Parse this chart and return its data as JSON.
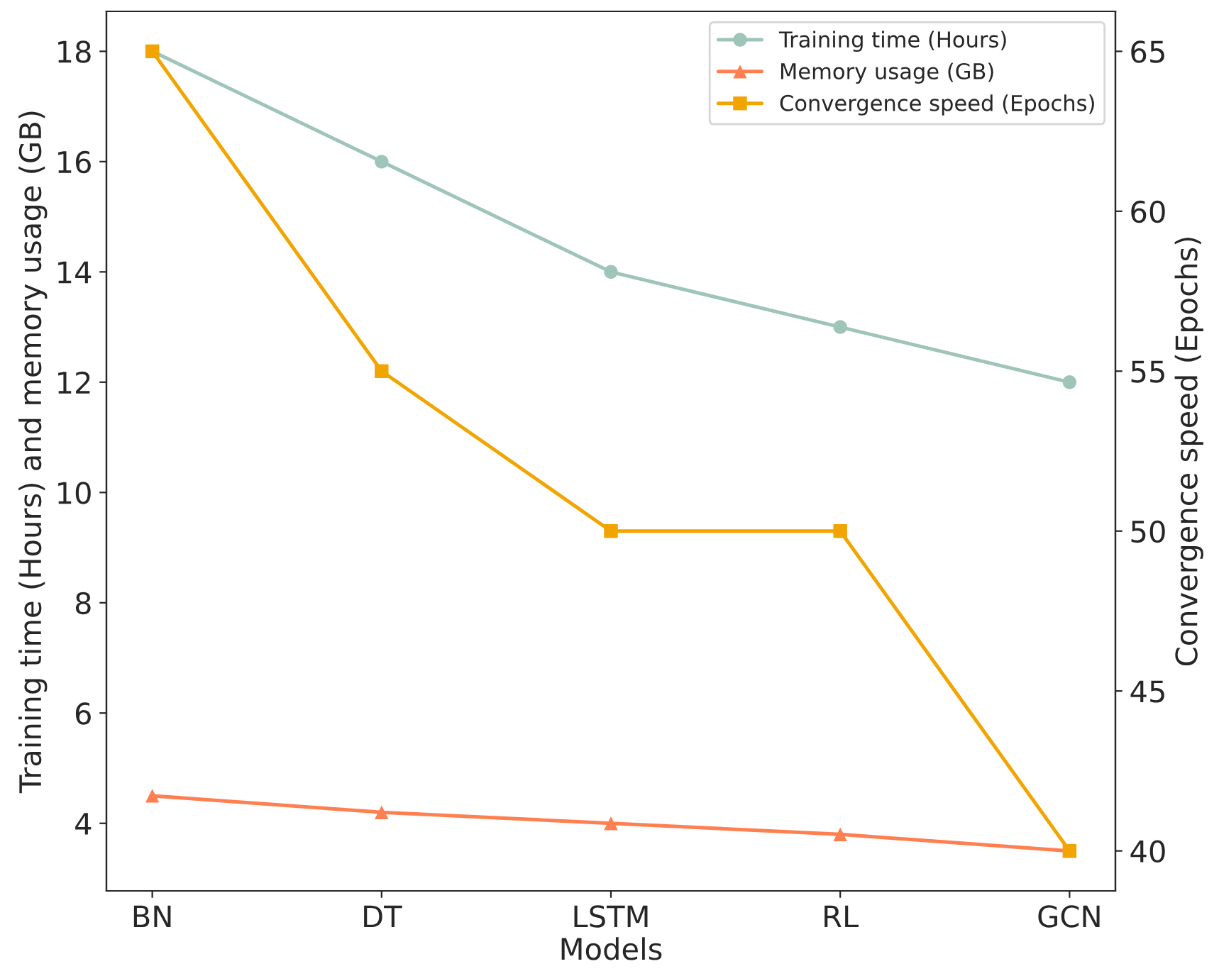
{
  "chart_data": {
    "type": "line",
    "xlabel": "Models",
    "ylabel": "Training time (Hours) and memory usage (GB)",
    "y2label": "Convergence speed (Epochs)",
    "categories": [
      "BN",
      "DT",
      "LSTM",
      "RL",
      "GCN"
    ],
    "series": [
      {
        "name": "Training time (Hours)",
        "color": "#9fc5b8",
        "values": [
          18,
          16,
          14,
          13,
          12
        ],
        "marker": "circle"
      },
      {
        "name": "Memory usage (GB)",
        "color": "#ff7f50",
        "values": [
          4.5,
          4.2,
          4.0,
          3.8,
          3.5
        ],
        "marker": "triangle"
      },
      {
        "name": "Convergence speed (Epochs)",
        "color": "#f2a400",
        "values": [
          65,
          55,
          50,
          50,
          40
        ],
        "marker": "square",
        "axis": "y2"
      }
    ],
    "ylim": [
      2.775,
      18.725
    ],
    "yticks": [
      4,
      6,
      8,
      10,
      12,
      14,
      16,
      18
    ],
    "y2lim": [
      38.75,
      66.25
    ],
    "y2ticks": [
      40,
      45,
      50,
      55,
      60,
      65
    ],
    "legend": "top right",
    "grid": false,
    "line_style": "solid"
  }
}
